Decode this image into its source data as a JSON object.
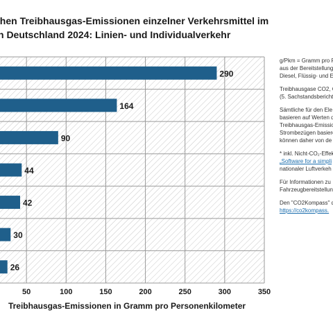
{
  "title": {
    "line1": "chen Treibhausgas-Emissionen einzelner Verkehrsmittel im",
    "line2": "n Deutschland 2024: Linien- und Individualverkehr"
  },
  "colors": {
    "bar": "#1f5f8b",
    "grid": "#9a9a9a",
    "hatch": "#c8c8c8",
    "link": "#1a6dad"
  },
  "chart_data": {
    "type": "bar",
    "orientation": "horizontal",
    "title": "",
    "xlabel": "Treibhausgas-Emissionen in Gramm pro Personenkilometer",
    "ylabel": "",
    "xlim": [
      0,
      350
    ],
    "xticks": [
      50,
      100,
      150,
      200,
      250,
      300,
      350
    ],
    "categories": [
      "",
      "",
      "",
      "",
      "",
      "",
      ""
    ],
    "values": [
      290,
      164,
      90,
      44,
      42,
      30,
      26
    ],
    "value_labels": [
      "290",
      "164",
      "90",
      "44",
      "42",
      "30",
      "26"
    ],
    "grid": true,
    "background": "diagonal hatch"
  },
  "notes": {
    "n1": "g/Pkm = Gramm pro P\naus der Bereitstellung\nDiesel, Flüssig- und E",
    "n2": "Treibhausgase CO2, C\n(5. Sachstandsbericht",
    "n3": "Sämtliche für den Ele\nbasieren auf Werten d\nTreibhausgas-Emissio\nStrombezügen basiere\nkönnen daher von de",
    "n4_text": "* inkl. Nicht-CO₂-Effek",
    "n4_link": "„Software for a simpli",
    "n4_rest": "nationaler Luftverkeh",
    "n5": "Für Informationen zu\nFahrzeugbereitstellun",
    "n6_text": "Den \"CO2Kompass\" d",
    "n6_link": "https://co2kompass."
  }
}
